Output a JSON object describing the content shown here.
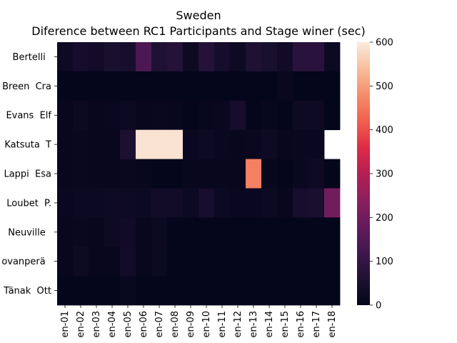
{
  "chart_data": {
    "type": "heatmap",
    "title": "Sweden",
    "subtitle": "Diference between RC1 Participants and Stage winer (sec)",
    "xlabel": "",
    "ylabel": "",
    "x_tick_labels": [
      "en-01",
      "en-02",
      "en-03",
      "en-04",
      "en-05",
      "en-06",
      "en-07",
      "en-08",
      "en-09",
      "en-10",
      "en-11",
      "en-12",
      "en-13",
      "en-14",
      "en-15",
      "en-16",
      "en-17",
      "en-18"
    ],
    "y_tick_labels": [
      "Bertelli  ",
      "Breen  Cra",
      "Evans  Elf",
      "Katsuta  T",
      "Lappi  Esa",
      "Loubet  P.",
      "Neuville  ",
      "ovanperä  ",
      "Tänak  Ott"
    ],
    "values": [
      [
        25,
        40,
        35,
        50,
        45,
        140,
        60,
        70,
        25,
        70,
        40,
        25,
        60,
        50,
        30,
        80,
        80,
        20
      ],
      [
        5,
        3,
        3,
        5,
        5,
        3,
        3,
        3,
        3,
        3,
        3,
        3,
        3,
        3,
        15,
        3,
        3,
        3
      ],
      [
        10,
        20,
        10,
        15,
        20,
        10,
        15,
        10,
        5,
        10,
        15,
        40,
        5,
        10,
        5,
        25,
        25,
        3
      ],
      [
        10,
        15,
        10,
        10,
        55,
        590,
        590,
        590,
        15,
        25,
        15,
        10,
        15,
        25,
        10,
        15,
        15,
        null
      ],
      [
        10,
        15,
        10,
        10,
        15,
        10,
        5,
        5,
        10,
        10,
        10,
        10,
        460,
        10,
        5,
        15,
        25,
        3
      ],
      [
        15,
        20,
        20,
        25,
        25,
        20,
        35,
        35,
        20,
        45,
        20,
        15,
        15,
        20,
        10,
        45,
        50,
        200
      ],
      [
        10,
        15,
        10,
        25,
        30,
        10,
        20,
        5,
        5,
        5,
        5,
        3,
        3,
        3,
        3,
        3,
        3,
        3
      ],
      [
        10,
        25,
        10,
        10,
        35,
        10,
        20,
        5,
        3,
        5,
        3,
        3,
        3,
        3,
        3,
        3,
        3,
        3
      ],
      [
        5,
        5,
        5,
        5,
        15,
        5,
        5,
        3,
        3,
        3,
        3,
        3,
        3,
        3,
        3,
        3,
        3,
        3
      ]
    ],
    "colorbar": {
      "min": 0,
      "max": 600,
      "ticks": [
        0,
        100,
        200,
        300,
        400,
        500,
        600
      ]
    },
    "colormap": "rocket",
    "grid": false,
    "legend": "colorbar-right"
  }
}
